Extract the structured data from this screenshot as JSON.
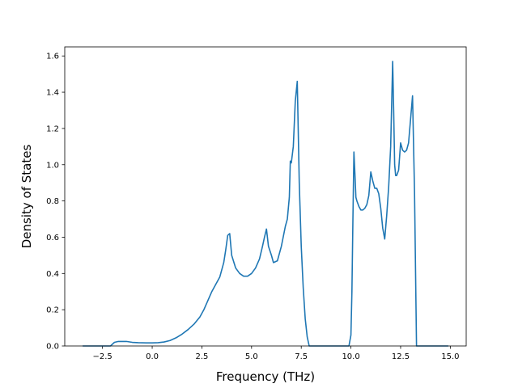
{
  "chart_data": {
    "type": "line",
    "xlabel": "Frequency (THz)",
    "ylabel": "Density of States",
    "xlim": [
      -4.4,
      15.8
    ],
    "ylim": [
      0.0,
      1.65
    ],
    "xticks": [
      -2.5,
      0.0,
      2.5,
      5.0,
      7.5,
      10.0,
      12.5,
      15.0
    ],
    "xtick_labels": [
      "−2.5",
      "0.0",
      "2.5",
      "5.0",
      "7.5",
      "10.0",
      "12.5",
      "15.0"
    ],
    "yticks": [
      0.0,
      0.2,
      0.4,
      0.6,
      0.8,
      1.0,
      1.2,
      1.4,
      1.6
    ],
    "ytick_labels": [
      "0.0",
      "0.2",
      "0.4",
      "0.6",
      "0.8",
      "1.0",
      "1.2",
      "1.4",
      "1.6"
    ],
    "grid": false,
    "line_color": "#1f77b4",
    "series": [
      {
        "x": [
          -3.5,
          -2.6,
          -2.1,
          -1.9,
          -1.7,
          -1.5,
          -1.3,
          -1.0,
          -0.7,
          -0.3,
          0.0,
          0.3,
          0.6,
          0.9,
          1.2,
          1.5,
          1.8,
          2.1,
          2.4,
          2.6,
          2.8,
          3.0,
          3.2,
          3.4,
          3.5,
          3.6,
          3.7,
          3.8,
          3.9,
          4.0,
          4.2,
          4.4,
          4.6,
          4.8,
          5.0,
          5.2,
          5.4,
          5.55,
          5.65,
          5.75,
          5.85,
          6.0,
          6.1,
          6.3,
          6.5,
          6.7,
          6.8,
          6.9,
          6.95,
          7.0,
          7.1,
          7.2,
          7.3,
          7.4,
          7.5,
          7.6,
          7.7,
          7.8,
          7.9,
          8.5,
          9.0,
          9.5,
          9.9,
          10.0,
          10.05,
          10.1,
          10.15,
          10.2,
          10.25,
          10.3,
          10.4,
          10.5,
          10.6,
          10.7,
          10.8,
          10.9,
          11.0,
          11.1,
          11.2,
          11.3,
          11.4,
          11.5,
          11.6,
          11.7,
          11.8,
          11.9,
          12.0,
          12.1,
          12.15,
          12.2,
          12.25,
          12.3,
          12.4,
          12.5,
          12.6,
          12.7,
          12.8,
          12.9,
          13.0,
          13.1,
          13.2,
          13.3,
          13.4,
          14.0,
          14.9
        ],
        "y": [
          0.0,
          0.0,
          0.0,
          0.02,
          0.025,
          0.025,
          0.025,
          0.02,
          0.018,
          0.017,
          0.017,
          0.018,
          0.022,
          0.03,
          0.045,
          0.065,
          0.09,
          0.12,
          0.16,
          0.2,
          0.25,
          0.3,
          0.34,
          0.38,
          0.42,
          0.46,
          0.53,
          0.61,
          0.62,
          0.5,
          0.43,
          0.4,
          0.385,
          0.385,
          0.4,
          0.43,
          0.48,
          0.55,
          0.6,
          0.645,
          0.55,
          0.5,
          0.46,
          0.47,
          0.55,
          0.66,
          0.7,
          0.82,
          1.02,
          1.01,
          1.1,
          1.35,
          1.46,
          0.9,
          0.55,
          0.32,
          0.15,
          0.05,
          0.0,
          0.0,
          0.0,
          0.0,
          0.0,
          0.06,
          0.3,
          0.7,
          1.07,
          0.95,
          0.82,
          0.8,
          0.77,
          0.75,
          0.75,
          0.76,
          0.78,
          0.83,
          0.96,
          0.91,
          0.87,
          0.87,
          0.84,
          0.76,
          0.65,
          0.59,
          0.72,
          0.88,
          1.1,
          1.57,
          1.3,
          1.0,
          0.94,
          0.94,
          0.97,
          1.12,
          1.08,
          1.07,
          1.08,
          1.12,
          1.25,
          1.38,
          0.85,
          0.0,
          0.0,
          0.0,
          0.0
        ]
      }
    ]
  }
}
